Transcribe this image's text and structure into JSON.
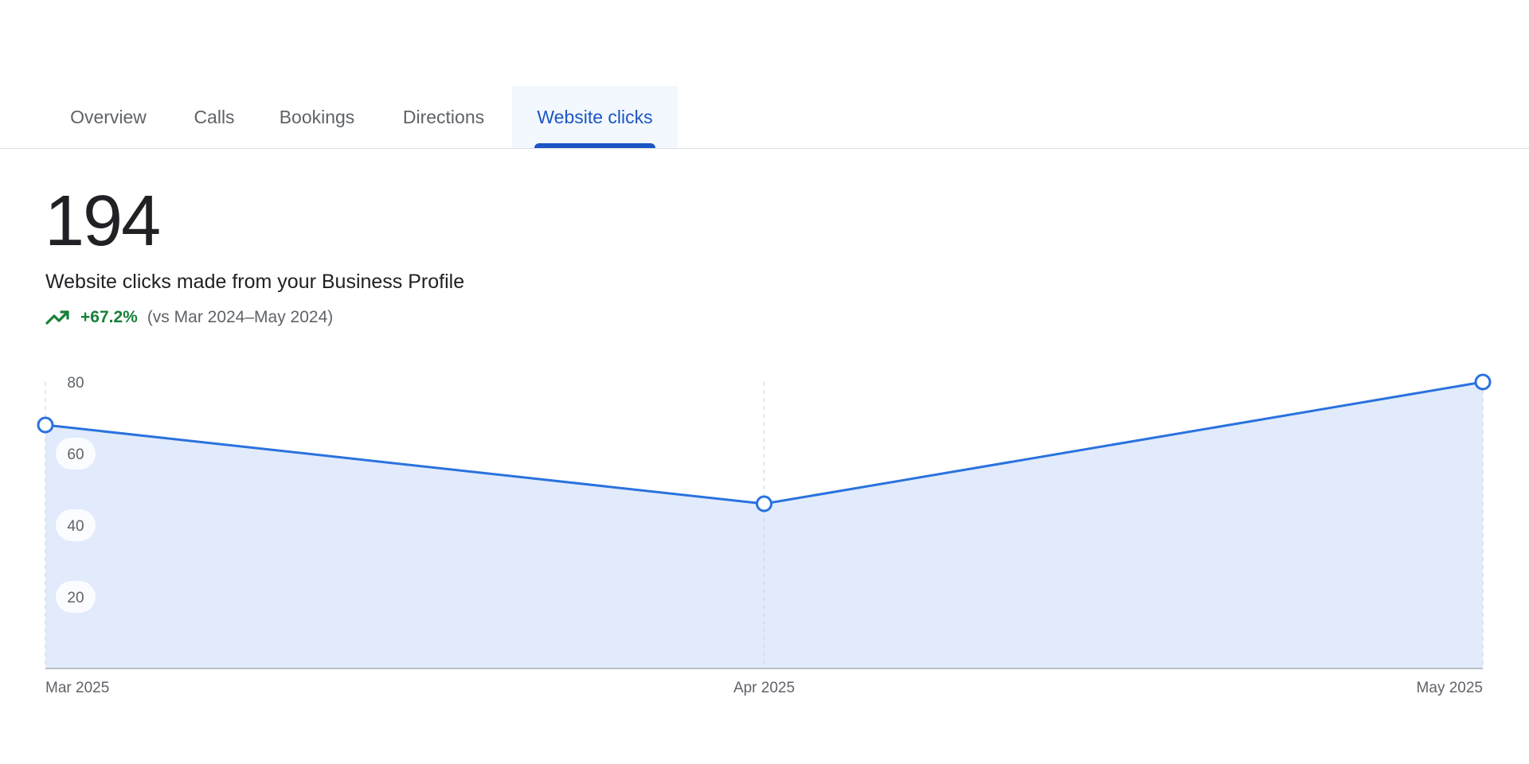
{
  "tabs": [
    {
      "label": "Overview",
      "active": false
    },
    {
      "label": "Calls",
      "active": false
    },
    {
      "label": "Bookings",
      "active": false
    },
    {
      "label": "Directions",
      "active": false
    },
    {
      "label": "Website clicks",
      "active": true
    }
  ],
  "metric": {
    "value": "194",
    "description": "Website clicks made from your Business Profile",
    "change": "+67.2%",
    "comparison": "(vs Mar 2024–May 2024)",
    "trend_icon": "trending-up-icon"
  },
  "colors": {
    "accent": "#1a56c4",
    "line": "#2a72de",
    "area": "#e1ebfc",
    "positive": "#188038"
  },
  "chart_data": {
    "type": "area",
    "categories": [
      "Mar 2025",
      "Apr 2025",
      "May 2025"
    ],
    "series": [
      {
        "values": [
          68,
          46,
          80
        ]
      }
    ],
    "ylim": [
      0,
      80
    ],
    "yticks": [
      20,
      40,
      60,
      80
    ],
    "grid": "vertical dashed at each category",
    "legend": "none"
  }
}
